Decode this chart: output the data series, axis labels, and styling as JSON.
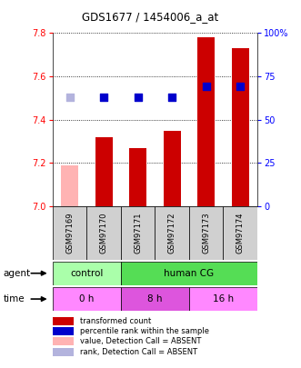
{
  "title": "GDS1677 / 1454006_a_at",
  "samples": [
    "GSM97169",
    "GSM97170",
    "GSM97171",
    "GSM97172",
    "GSM97173",
    "GSM97174"
  ],
  "bar_values": [
    7.19,
    7.32,
    7.27,
    7.35,
    7.78,
    7.73
  ],
  "bar_absent": [
    true,
    false,
    false,
    false,
    false,
    false
  ],
  "rank_values": [
    63,
    63,
    63,
    63,
    69,
    69
  ],
  "rank_absent": [
    true,
    false,
    false,
    false,
    false,
    false
  ],
  "ylim_left": [
    7.0,
    7.8
  ],
  "ylim_right": [
    0,
    100
  ],
  "yticks_left": [
    7.0,
    7.2,
    7.4,
    7.6,
    7.8
  ],
  "yticks_right": [
    0,
    25,
    50,
    75,
    100
  ],
  "bar_color": "#cc0000",
  "bar_absent_color": "#ffb3b3",
  "rank_color": "#0000cc",
  "rank_absent_color": "#b3b3dd",
  "agent_regions": [
    {
      "label": "control",
      "start": 0,
      "end": 2,
      "color": "#aaffaa"
    },
    {
      "label": "human CG",
      "start": 2,
      "end": 6,
      "color": "#55dd55"
    }
  ],
  "time_regions": [
    {
      "label": "0 h",
      "start": 0,
      "end": 2,
      "color": "#ff88ff"
    },
    {
      "label": "8 h",
      "start": 2,
      "end": 4,
      "color": "#dd55dd"
    },
    {
      "label": "16 h",
      "start": 4,
      "end": 6,
      "color": "#ff88ff"
    }
  ],
  "legend_items": [
    {
      "label": "transformed count",
      "color": "#cc0000"
    },
    {
      "label": "percentile rank within the sample",
      "color": "#0000cc"
    },
    {
      "label": "value, Detection Call = ABSENT",
      "color": "#ffb3b3"
    },
    {
      "label": "rank, Detection Call = ABSENT",
      "color": "#b3b3dd"
    }
  ],
  "bar_width": 0.5,
  "rank_marker_size": 40
}
